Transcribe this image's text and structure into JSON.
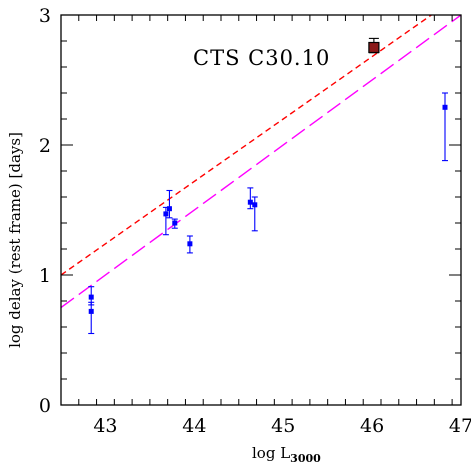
{
  "chart_data": {
    "type": "scatter",
    "xlabel": {
      "main": "log L",
      "sub": "3000"
    },
    "ylabel": "log delay (rest frame) [days]",
    "xlim": [
      42.5,
      47
    ],
    "ylim": [
      0,
      3
    ],
    "x_major_ticks": [
      43,
      44,
      45,
      46,
      47
    ],
    "x_tick_labels": [
      "43",
      "44",
      "45",
      "46",
      "47"
    ],
    "x_minor_step": 0.2,
    "y_major_ticks": [
      0,
      1,
      2,
      3
    ],
    "y_tick_labels": [
      "0",
      "1",
      "2",
      "3"
    ],
    "y_minor_step": 0.2,
    "grid": false,
    "annotation": "CTS C30.10",
    "series": [
      {
        "kind": "points_with_errors",
        "color": "#0000ff",
        "points": [
          {
            "x": 42.84,
            "y": 0.83,
            "yerr_lo": 0.06,
            "yerr_hi": 0.08
          },
          {
            "x": 42.84,
            "y": 0.72,
            "yerr_lo": 0.17,
            "yerr_hi": 0.07
          },
          {
            "x": 43.68,
            "y": 1.47,
            "yerr_lo": 0.16,
            "yerr_hi": 0.05
          },
          {
            "x": 43.72,
            "y": 1.51,
            "yerr_lo": 0.07,
            "yerr_hi": 0.14
          },
          {
            "x": 43.78,
            "y": 1.4,
            "yerr_lo": 0.04,
            "yerr_hi": 0.03
          },
          {
            "x": 43.95,
            "y": 1.24,
            "yerr_lo": 0.07,
            "yerr_hi": 0.06
          },
          {
            "x": 44.63,
            "y": 1.56,
            "yerr_lo": 0.05,
            "yerr_hi": 0.11
          },
          {
            "x": 44.68,
            "y": 1.54,
            "yerr_lo": 0.2,
            "yerr_hi": 0.06
          },
          {
            "x": 46.82,
            "y": 2.29,
            "yerr_lo": 0.41,
            "yerr_hi": 0.11
          }
        ]
      },
      {
        "kind": "highlight_point_with_error",
        "label": "CTS C30.10",
        "fill": "#8b1a1a",
        "edge": "#000000",
        "point": {
          "x": 46.02,
          "y": 2.75,
          "yerr_lo": 0.04,
          "yerr_hi": 0.07
        }
      },
      {
        "kind": "line",
        "style": "short-dash",
        "color": "#ff0000",
        "slope": 0.48,
        "intercept": -19.4,
        "x_from": 42.5,
        "x_to": 46.72
      },
      {
        "kind": "line",
        "style": "long-dash",
        "color": "#ff00ff",
        "slope": 0.5,
        "intercept": -20.5,
        "x_from": 42.5,
        "x_to": 47
      }
    ]
  }
}
